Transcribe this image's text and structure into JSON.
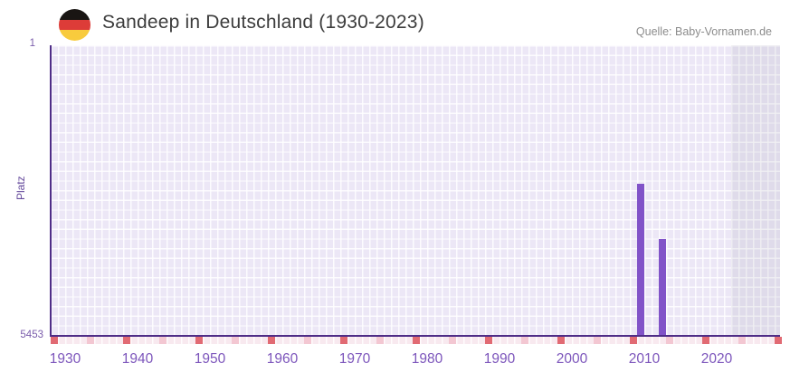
{
  "header": {
    "title": "Sandeep in Deutschland (1930-2023)",
    "source": "Quelle: Baby-Vornamen.de",
    "flag": "germany-flag"
  },
  "chart_data": {
    "type": "bar",
    "title": "Sandeep in Deutschland (1930-2023)",
    "xlabel": "",
    "ylabel": "Platz",
    "y_axis": {
      "top_label": "1",
      "bottom_label": "5453",
      "min": 1,
      "max": 5453,
      "inverted": true
    },
    "x_axis": {
      "start_year": 1929,
      "end_year": 2030,
      "tick_years": [
        1930,
        1940,
        1950,
        1960,
        1970,
        1980,
        1990,
        2000,
        2010,
        2020
      ]
    },
    "bars": [
      {
        "year": 2010,
        "rank": 2600
      },
      {
        "year": 2013,
        "rank": 3640
      }
    ],
    "timeline_strip": {
      "major_years": [
        1929,
        1939,
        1949,
        1959,
        1969,
        1979,
        1989,
        1999,
        2009,
        2019,
        2029
      ],
      "minor_years": [
        1934,
        1944,
        1954,
        1964,
        1974,
        1984,
        1994,
        2004,
        2014,
        2024
      ]
    },
    "shaded_from_year": 2023,
    "colors": {
      "bar": "#8153c8",
      "axis": "#4f2d87",
      "plot_background": "#ece7f6",
      "strip_major": "#e16a73",
      "strip_minor": "#f3c7d2",
      "x_tick_label": "#7c55bb"
    }
  }
}
